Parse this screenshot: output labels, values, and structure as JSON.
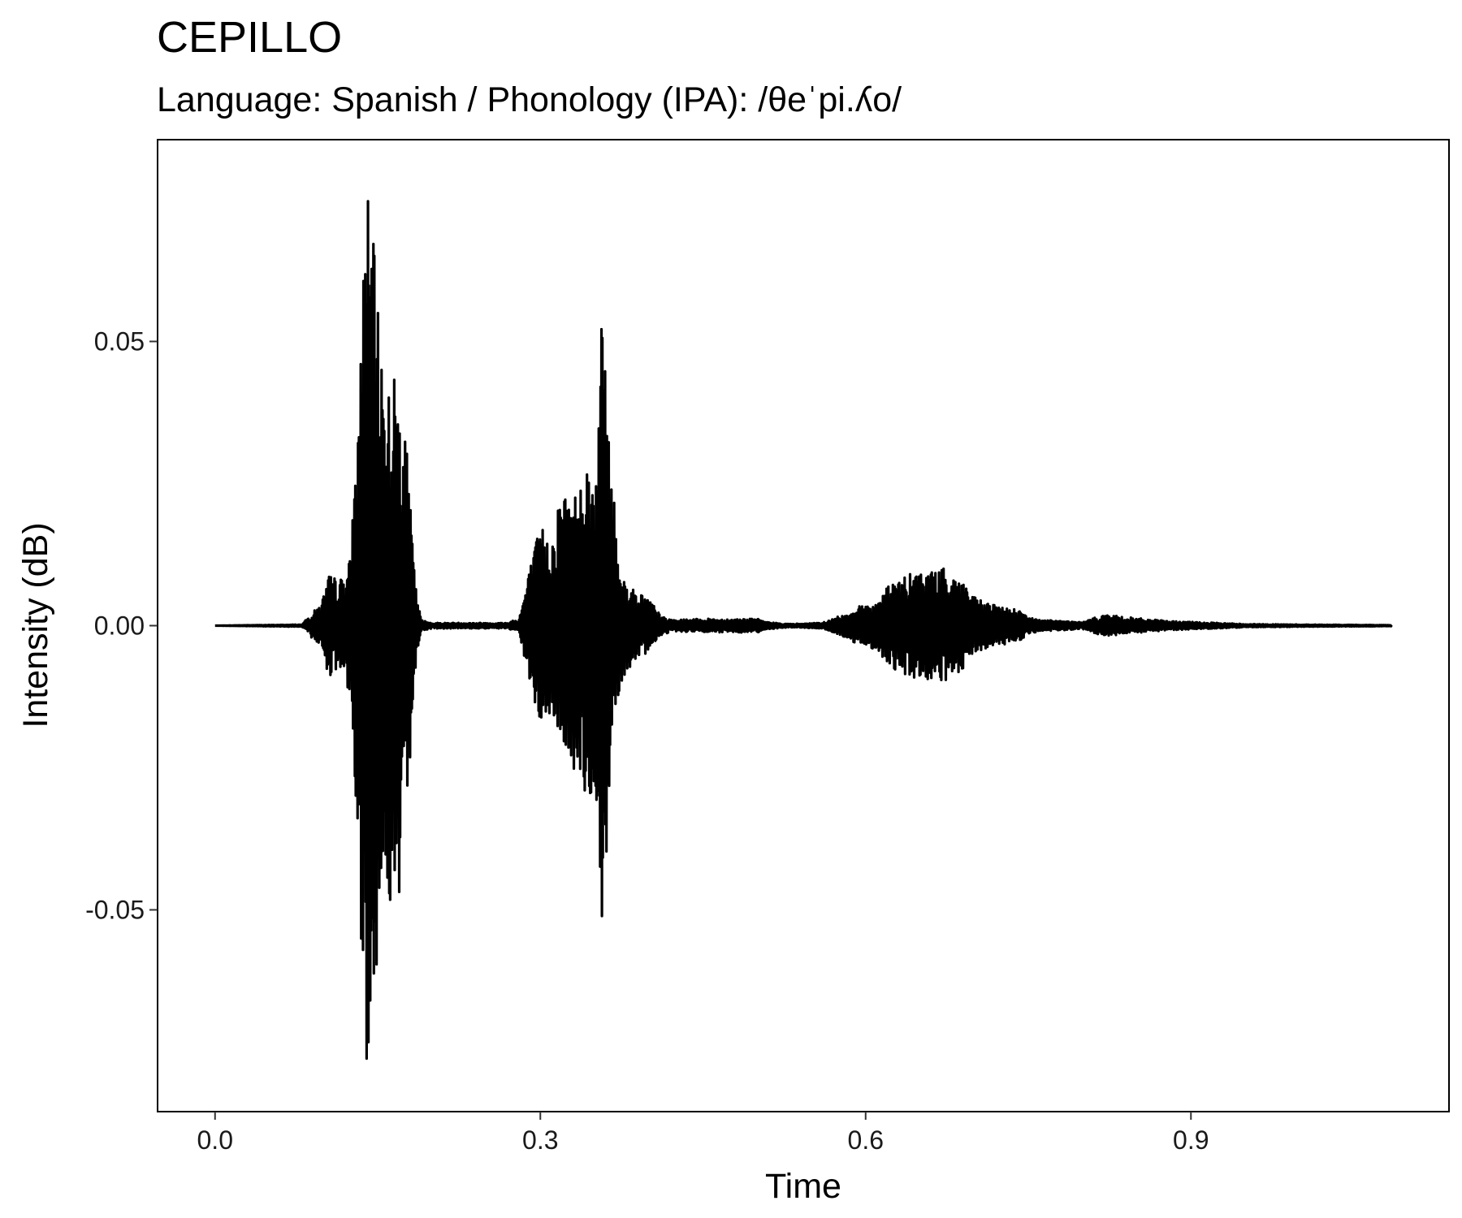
{
  "chart_data": {
    "type": "line",
    "title": "CEPILLO",
    "subtitle": "Language: Spanish / Phonology (IPA): /θeˈpi.ʎo/",
    "xlabel": "Time",
    "ylabel": "Intensity (dB)",
    "xlim": [
      -0.053,
      1.138
    ],
    "ylim": [
      -0.0855,
      0.0855
    ],
    "x_ticks": [
      0.0,
      0.3,
      0.6,
      0.9
    ],
    "x_tick_labels": [
      "0.0",
      "0.3",
      "0.6",
      "0.9"
    ],
    "y_ticks": [
      -0.05,
      0.0,
      0.05
    ],
    "y_tick_labels": [
      "-0.05",
      "0.00",
      "0.05"
    ],
    "grid": false,
    "legend": "none",
    "line_color": "#000000",
    "series": [
      {
        "envelope": {
          "x": [
            0.0,
            0.08,
            0.098,
            0.105,
            0.115,
            0.125,
            0.134,
            0.139,
            0.145,
            0.152,
            0.16,
            0.168,
            0.176,
            0.185,
            0.19,
            0.2,
            0.27,
            0.275,
            0.28,
            0.29,
            0.3,
            0.31,
            0.32,
            0.33,
            0.34,
            0.35,
            0.358,
            0.365,
            0.372,
            0.38,
            0.39,
            0.4,
            0.41,
            0.42,
            0.45,
            0.5,
            0.51,
            0.53,
            0.56,
            0.58,
            0.6,
            0.61,
            0.62,
            0.64,
            0.66,
            0.675,
            0.69,
            0.7,
            0.72,
            0.74,
            0.75,
            0.76,
            0.77,
            0.8,
            0.82,
            0.84,
            0.88,
            0.95,
            1.0,
            1.085
          ],
          "upper": [
            0.0,
            0.0002,
            0.004,
            0.009,
            0.008,
            0.012,
            0.047,
            0.078,
            0.07,
            0.052,
            0.043,
            0.045,
            0.033,
            0.007,
            0.001,
            0.0005,
            0.0005,
            0.001,
            0.001,
            0.01,
            0.018,
            0.015,
            0.025,
            0.022,
            0.031,
            0.026,
            0.059,
            0.03,
            0.012,
            0.007,
            0.006,
            0.005,
            0.002,
            0.001,
            0.0012,
            0.0012,
            0.0006,
            0.0003,
            0.0005,
            0.002,
            0.004,
            0.004,
            0.007,
            0.009,
            0.01,
            0.01,
            0.008,
            0.005,
            0.0035,
            0.003,
            0.0015,
            0.001,
            0.001,
            0.0006,
            0.002,
            0.0015,
            0.0008,
            0.0003,
            0.0002,
            0.0001
          ],
          "lower": [
            0.0,
            -0.0002,
            -0.004,
            -0.009,
            -0.008,
            -0.012,
            -0.053,
            -0.078,
            -0.07,
            -0.052,
            -0.048,
            -0.055,
            -0.037,
            -0.007,
            -0.001,
            -0.0005,
            -0.0005,
            -0.001,
            -0.001,
            -0.01,
            -0.018,
            -0.016,
            -0.02,
            -0.026,
            -0.03,
            -0.03,
            -0.058,
            -0.02,
            -0.012,
            -0.008,
            -0.007,
            -0.004,
            -0.002,
            -0.001,
            -0.0012,
            -0.0012,
            -0.0006,
            -0.0003,
            -0.0005,
            -0.002,
            -0.004,
            -0.004,
            -0.007,
            -0.009,
            -0.01,
            -0.01,
            -0.008,
            -0.005,
            -0.0035,
            -0.003,
            -0.0015,
            -0.001,
            -0.001,
            -0.0006,
            -0.002,
            -0.0015,
            -0.0008,
            -0.0003,
            -0.0002,
            -0.0001
          ]
        }
      }
    ]
  }
}
